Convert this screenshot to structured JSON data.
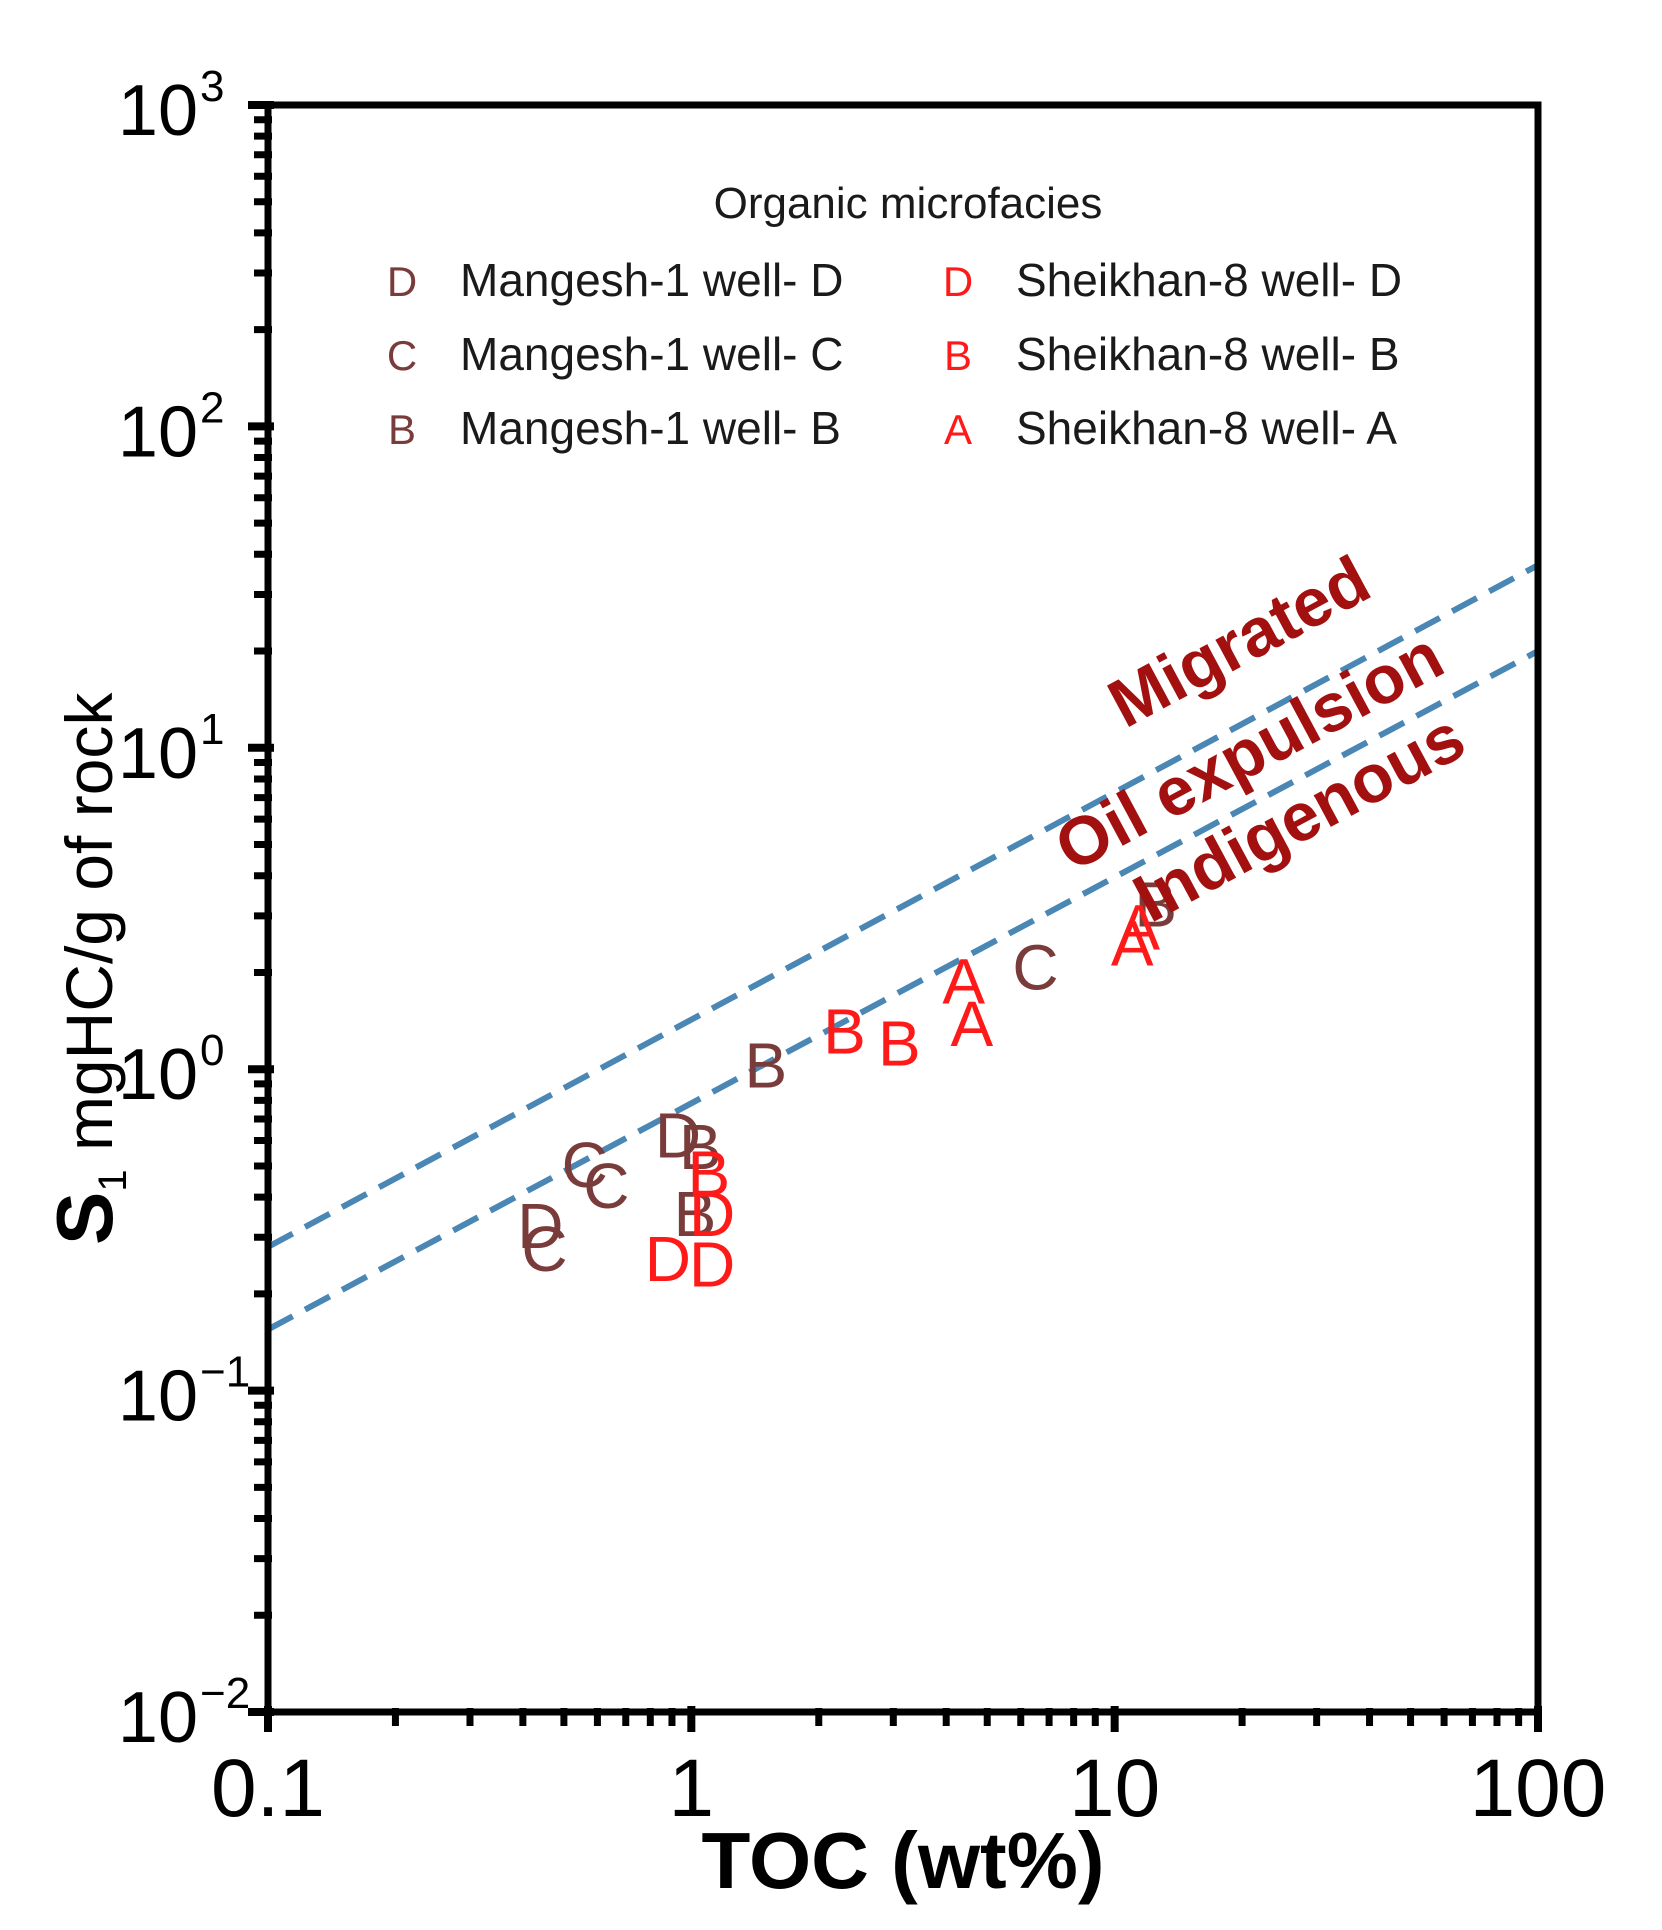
{
  "chart_data": {
    "type": "scatter",
    "xscale": "log",
    "yscale": "log",
    "xlim": [
      0.1,
      100
    ],
    "ylim": [
      0.01,
      1000
    ],
    "xlabel": "TOC (wt%)",
    "ylabel_main": "S",
    "ylabel_sub": "1",
    "ylabel_rest": " mgHC/g of rock",
    "x_ticks": [
      {
        "value": 0.1,
        "label": "0.1"
      },
      {
        "value": 1,
        "label": "1"
      },
      {
        "value": 10,
        "label": "10"
      },
      {
        "value": 100,
        "label": "100"
      }
    ],
    "y_ticks": [
      {
        "value": 0.01,
        "base": "10",
        "exp": "−2"
      },
      {
        "value": 0.1,
        "base": "10",
        "exp": "−1"
      },
      {
        "value": 1,
        "base": "10",
        "exp": "0"
      },
      {
        "value": 10,
        "base": "10",
        "exp": "1"
      },
      {
        "value": 100,
        "base": "10",
        "exp": "2"
      },
      {
        "value": 1000,
        "base": "10",
        "exp": "3"
      }
    ],
    "legend": {
      "title": "Organic microfacies",
      "position": "top-center",
      "entries": [
        {
          "symbol": "D",
          "label": "Mangesh-1 well- D",
          "color": "#7a3b3b"
        },
        {
          "symbol": "C",
          "label": "Mangesh-1 well- C",
          "color": "#7a3b3b"
        },
        {
          "symbol": "B",
          "label": "Mangesh-1 well- B",
          "color": "#7a3b3b"
        },
        {
          "symbol": "D",
          "label": "Sheikhan-8 well- D",
          "color": "#ff1a1a"
        },
        {
          "symbol": "B",
          "label": "Sheikhan-8 well- B",
          "color": "#ff1a1a"
        },
        {
          "symbol": "A",
          "label": "Sheikhan-8 well- A",
          "color": "#ff1a1a"
        }
      ]
    },
    "lines": [
      {
        "name": "upper-boundary",
        "points": [
          [
            0.1,
            0.28
          ],
          [
            100,
            37
          ]
        ],
        "color": "#4a87b5",
        "style": "dashed"
      },
      {
        "name": "lower-boundary",
        "points": [
          [
            0.1,
            0.155
          ],
          [
            100,
            20
          ]
        ],
        "color": "#4a87b5",
        "style": "dashed"
      }
    ],
    "annotations": [
      {
        "text": "Migrated",
        "color": "#a31010"
      },
      {
        "text": "Oil expulsion",
        "color": "#a31010"
      },
      {
        "text": "Indigenous",
        "color": "#a31010"
      }
    ],
    "series": [
      {
        "name": "Mangesh-1 well- D",
        "symbol": "D",
        "color": "#7a3b3b",
        "points": [
          [
            0.44,
            0.33
          ],
          [
            0.93,
            0.63
          ]
        ]
      },
      {
        "name": "Mangesh-1 well- C",
        "symbol": "C",
        "color": "#7a3b3b",
        "points": [
          [
            0.45,
            0.28
          ],
          [
            0.56,
            0.51
          ],
          [
            0.63,
            0.44
          ],
          [
            6.5,
            2.1
          ]
        ]
      },
      {
        "name": "Mangesh-1 well- B",
        "symbol": "B",
        "color": "#7a3b3b",
        "points": [
          [
            1.02,
            0.36
          ],
          [
            1.05,
            0.58
          ],
          [
            1.5,
            1.04
          ],
          [
            12.5,
            3.3
          ]
        ]
      },
      {
        "name": "Sheikhan-8 well- D",
        "symbol": "D",
        "color": "#ff1a1a",
        "points": [
          [
            0.88,
            0.26
          ],
          [
            1.12,
            0.36
          ],
          [
            1.12,
            0.25
          ]
        ]
      },
      {
        "name": "Sheikhan-8 well- B",
        "symbol": "B",
        "color": "#ff1a1a",
        "points": [
          [
            1.1,
            0.48
          ],
          [
            2.3,
            1.33
          ],
          [
            3.1,
            1.22
          ]
        ]
      },
      {
        "name": "Sheikhan-8 well- A",
        "symbol": "A",
        "color": "#ff1a1a",
        "points": [
          [
            4.4,
            1.9
          ],
          [
            4.6,
            1.4
          ],
          [
            11,
            2.5
          ],
          [
            11.4,
            2.8
          ]
        ]
      }
    ]
  }
}
